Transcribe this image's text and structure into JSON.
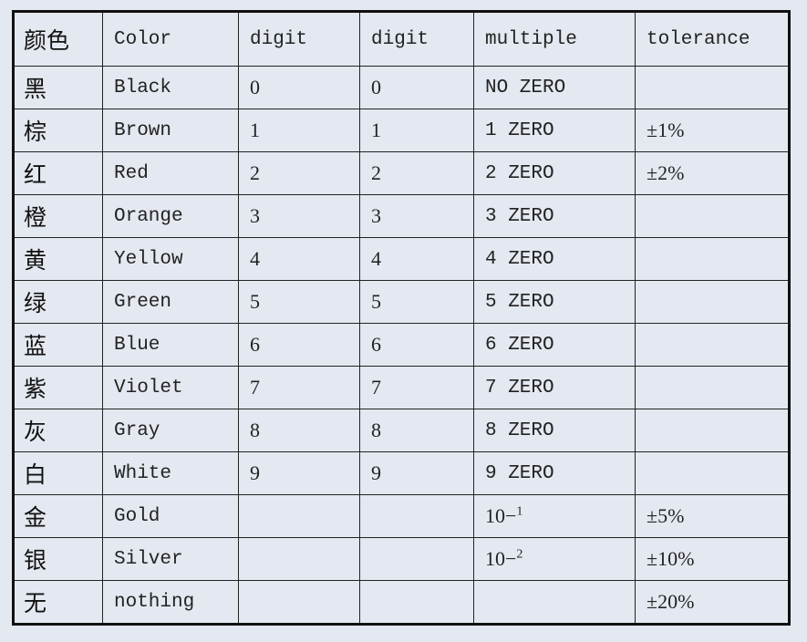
{
  "headers": [
    "颜色",
    "Color",
    "digit",
    "digit",
    "multiple",
    "tolerance"
  ],
  "rows": [
    {
      "cn": "黑",
      "color": "Black",
      "d1": "0",
      "d2": "0",
      "mult": "NO ZERO",
      "mult_exp": "",
      "tol": ""
    },
    {
      "cn": "棕",
      "color": "Brown",
      "d1": "1",
      "d2": "1",
      "mult": "1 ZERO",
      "mult_exp": "",
      "tol": "±1%"
    },
    {
      "cn": "红",
      "color": "Red",
      "d1": "2",
      "d2": "2",
      "mult": "2 ZERO",
      "mult_exp": "",
      "tol": "±2%"
    },
    {
      "cn": "橙",
      "color": "Orange",
      "d1": "3",
      "d2": "3",
      "mult": "3 ZERO",
      "mult_exp": "",
      "tol": ""
    },
    {
      "cn": "黄",
      "color": "Yellow",
      "d1": "4",
      "d2": "4",
      "mult": "4 ZERO",
      "mult_exp": "",
      "tol": ""
    },
    {
      "cn": "绿",
      "color": "Green",
      "d1": "5",
      "d2": "5",
      "mult": "5 ZERO",
      "mult_exp": "",
      "tol": ""
    },
    {
      "cn": "蓝",
      "color": "Blue",
      "d1": "6",
      "d2": "6",
      "mult": "6 ZERO",
      "mult_exp": "",
      "tol": ""
    },
    {
      "cn": "紫",
      "color": "Violet",
      "d1": "7",
      "d2": "7",
      "mult": "7 ZERO",
      "mult_exp": "",
      "tol": ""
    },
    {
      "cn": "灰",
      "color": "Gray",
      "d1": "8",
      "d2": "8",
      "mult": "8 ZERO",
      "mult_exp": "",
      "tol": ""
    },
    {
      "cn": "白",
      "color": "White",
      "d1": "9",
      "d2": "9",
      "mult": "9 ZERO",
      "mult_exp": "",
      "tol": ""
    },
    {
      "cn": "金",
      "color": "Gold",
      "d1": "",
      "d2": "",
      "mult": "10−",
      "mult_exp": "1",
      "tol": "±5%"
    },
    {
      "cn": "银",
      "color": "Silver",
      "d1": "",
      "d2": "",
      "mult": "10−",
      "mult_exp": "2",
      "tol": "±10%"
    },
    {
      "cn": "无",
      "color": "nothing",
      "d1": "",
      "d2": "",
      "mult": "",
      "mult_exp": "",
      "tol": "±20%"
    }
  ]
}
